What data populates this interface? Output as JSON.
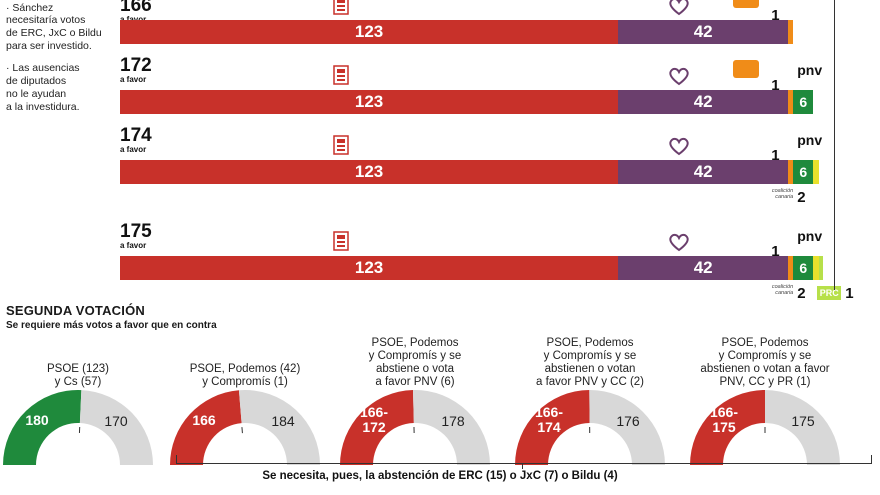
{
  "notes": {
    "lines": [
      "· Sánchez",
      "necesitaría votos",
      "de ERC, JxC o Bildu",
      "para ser investido.",
      "· Las ausencias",
      "de diputados",
      "no le ayudan",
      "a la investidura."
    ]
  },
  "first_vote": {
    "rows": [
      {
        "total": "166",
        "sub": "a favor",
        "psoe": "123",
        "podemos": "42",
        "compromis": "1",
        "pnv": "",
        "cc": "",
        "prc": ""
      },
      {
        "total": "172",
        "sub": "a favor",
        "psoe": "123",
        "podemos": "42",
        "compromis": "1",
        "pnv": "6",
        "cc": "",
        "prc": ""
      },
      {
        "total": "174",
        "sub": "a favor",
        "psoe": "123",
        "podemos": "42",
        "compromis": "1",
        "pnv": "6",
        "cc": "2",
        "prc": ""
      },
      {
        "total": "175",
        "sub": "a favor",
        "psoe": "123",
        "podemos": "42",
        "compromis": "1",
        "pnv": "6",
        "cc": "2",
        "prc": "1"
      }
    ],
    "logos": {
      "pnv": "pnv",
      "compromis": "compromís",
      "cc": "coalición canaria",
      "prc": "PRC"
    }
  },
  "second_vote": {
    "title": "SEGUNDA VOTACIÓN",
    "subtitle": "Se requiere más votos a favor que en contra",
    "footer": "Se necesita, pues, la abstención de ERC (15) o JxC (7) o Bildu (4)",
    "gauges": [
      {
        "caption": [
          "PSOE (123)",
          "y Cs (57)"
        ],
        "favor": "180",
        "contra": "170",
        "favor_value": 180,
        "contra_value": 170,
        "color": "#1f8a3c"
      },
      {
        "caption": [
          "PSOE, Podemos (42)",
          "y Compromís (1)"
        ],
        "favor": "166",
        "contra": "184",
        "favor_value": 166,
        "contra_value": 184,
        "color": "#c8312a"
      },
      {
        "caption": [
          "PSOE, Podemos",
          "y Compromís y se",
          "abstiene o vota",
          "a favor PNV (6)"
        ],
        "favor": "166-\n172",
        "contra": "178",
        "favor_value": 172,
        "contra_value": 178,
        "color": "#c8312a"
      },
      {
        "caption": [
          "PSOE, Podemos",
          "y Compromís y se",
          "abstienen o votan",
          "a favor PNV y CC (2)"
        ],
        "favor": "166-\n174",
        "contra": "176",
        "favor_value": 174,
        "contra_value": 176,
        "color": "#c8312a"
      },
      {
        "caption": [
          "PSOE, Podemos",
          "y Compromís y se",
          "abstienen o votan a favor",
          "PNV, CC y PR (1)"
        ],
        "favor": "166-\n175",
        "contra": "175",
        "favor_value": 175,
        "contra_value": 175,
        "color": "#c8312a"
      }
    ]
  },
  "chart_data": {
    "type": "bar",
    "title": "",
    "categories": [
      "166 a favor",
      "172 a favor",
      "174 a favor",
      "175 a favor"
    ],
    "series": [
      {
        "name": "PSOE",
        "values": [
          123,
          123,
          123,
          123
        ]
      },
      {
        "name": "Podemos",
        "values": [
          42,
          42,
          42,
          42
        ]
      },
      {
        "name": "Compromís",
        "values": [
          1,
          1,
          1,
          1
        ]
      },
      {
        "name": "PNV",
        "values": [
          0,
          6,
          6,
          6
        ]
      },
      {
        "name": "Coalición Canaria",
        "values": [
          0,
          0,
          2,
          2
        ]
      },
      {
        "name": "PRC",
        "values": [
          0,
          0,
          0,
          1
        ]
      }
    ],
    "colors": {
      "psoe": "#c8312a",
      "podemos": "#6b3f6d",
      "compromis": "#f08c18",
      "pnv": "#1f8a3c",
      "cc": "#e9e12c",
      "prc": "#b7e04a",
      "contra": "#d8d8d8"
    }
  }
}
